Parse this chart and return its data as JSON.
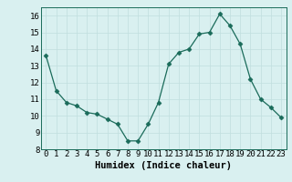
{
  "x": [
    0,
    1,
    2,
    3,
    4,
    5,
    6,
    7,
    8,
    9,
    10,
    11,
    12,
    13,
    14,
    15,
    16,
    17,
    18,
    19,
    20,
    21,
    22,
    23
  ],
  "y": [
    13.6,
    11.5,
    10.8,
    10.6,
    10.2,
    10.1,
    9.8,
    9.5,
    8.5,
    8.5,
    9.5,
    10.8,
    13.1,
    13.8,
    14.0,
    14.9,
    15.0,
    16.1,
    15.4,
    14.3,
    12.2,
    11.0,
    10.5,
    9.9
  ],
  "line_color": "#1a6b5a",
  "marker": "D",
  "marker_size": 2.5,
  "bg_color": "#d9f0f0",
  "grid_color": "#c0dede",
  "xlabel": "Humidex (Indice chaleur)",
  "ylim": [
    8,
    16.5
  ],
  "xlim": [
    -0.5,
    23.5
  ],
  "yticks": [
    8,
    9,
    10,
    11,
    12,
    13,
    14,
    15,
    16
  ],
  "xticks": [
    0,
    1,
    2,
    3,
    4,
    5,
    6,
    7,
    8,
    9,
    10,
    11,
    12,
    13,
    14,
    15,
    16,
    17,
    18,
    19,
    20,
    21,
    22,
    23
  ],
  "xlabel_fontsize": 7.5,
  "tick_fontsize": 6.5
}
